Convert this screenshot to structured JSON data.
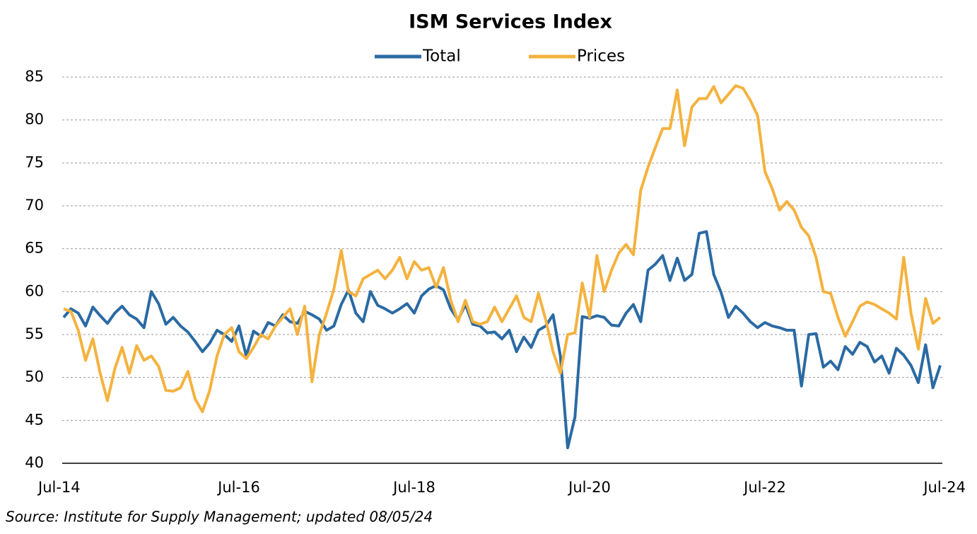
{
  "chart_data": {
    "type": "line",
    "title": "ISM Services Index",
    "source": "Source: Institute for Supply Management; updated 08/05/24",
    "categories": [
      "Jul-14",
      null,
      null,
      null,
      null,
      null,
      null,
      null,
      null,
      null,
      null,
      null,
      null,
      null,
      null,
      null,
      null,
      null,
      null,
      null,
      null,
      null,
      null,
      null,
      "Jul-16",
      null,
      null,
      null,
      null,
      null,
      null,
      null,
      null,
      null,
      null,
      null,
      null,
      null,
      null,
      null,
      null,
      null,
      null,
      null,
      null,
      null,
      null,
      null,
      "Jul-18",
      null,
      null,
      null,
      null,
      null,
      null,
      null,
      null,
      null,
      null,
      null,
      null,
      null,
      null,
      null,
      null,
      null,
      null,
      null,
      null,
      null,
      null,
      null,
      "Jul-20",
      null,
      null,
      null,
      null,
      null,
      null,
      null,
      null,
      null,
      null,
      null,
      null,
      null,
      null,
      null,
      null,
      null,
      null,
      null,
      null,
      null,
      null,
      null,
      "Jul-22",
      null,
      null,
      null,
      null,
      null,
      null,
      null,
      null,
      null,
      null,
      null,
      null,
      null,
      null,
      null,
      null,
      null,
      null,
      null,
      null,
      null,
      null,
      null,
      "Jul-24"
    ],
    "series": [
      {
        "name": "Total",
        "color": "#2a6aa3",
        "values": [
          57,
          58,
          57.5,
          56,
          58.2,
          57.2,
          56.3,
          57.5,
          58.3,
          57.3,
          56.8,
          55.8,
          60,
          58.6,
          56.2,
          57,
          56,
          55.3,
          54.2,
          53,
          54,
          55.5,
          55,
          54.2,
          56,
          52.5,
          55.4,
          54.8,
          56.4,
          56,
          57.3,
          56.5,
          56.3,
          57.7,
          57.3,
          56.8,
          55.5,
          56,
          58.5,
          60.2,
          57.5,
          56.5,
          60,
          58.4,
          58,
          57.5,
          58,
          58.6,
          57.5,
          59.5,
          60.3,
          60.7,
          60.2,
          58,
          56.7,
          58.5,
          56.2,
          56,
          55.2,
          55.3,
          54.5,
          55.5,
          53,
          54.7,
          53.5,
          55.5,
          56,
          57.3,
          52.5,
          41.8,
          45.4,
          57.1,
          56.9,
          57.2,
          57,
          56.1,
          56,
          57.5,
          58.5,
          56.5,
          62.5,
          63.2,
          64.2,
          61.3,
          63.9,
          61.3,
          62,
          66.8,
          67,
          62,
          59.9,
          57,
          58.3,
          57.5,
          56.5,
          55.8,
          56.4,
          56,
          55.8,
          55.5,
          55.5,
          49,
          55,
          55.1,
          51.2,
          51.9,
          50.9,
          53.6,
          52.7,
          54.1,
          53.6,
          51.8,
          52.5,
          50.5,
          53.4,
          52.6,
          51.4,
          49.4,
          53.8,
          48.8,
          51.4
        ]
      },
      {
        "name": "Prices",
        "color": "#f4b23e",
        "values": [
          58,
          57.7,
          55.5,
          52,
          54.5,
          50.5,
          47.3,
          51,
          53.5,
          50.5,
          53.7,
          52,
          52.5,
          51.3,
          48.5,
          48.4,
          48.8,
          50.7,
          47.5,
          46,
          48.5,
          52.5,
          55,
          55.8,
          53,
          52.2,
          53.5,
          55,
          54.5,
          56,
          57,
          58,
          55,
          58.3,
          49.5,
          55,
          57.5,
          60.3,
          64.8,
          60,
          59.5,
          61.5,
          62,
          62.5,
          61.5,
          62.5,
          64,
          61.5,
          63.5,
          62.5,
          62.8,
          60.5,
          62.8,
          59,
          56.5,
          59,
          56.5,
          56.2,
          56.5,
          58.2,
          56.5,
          58,
          59.5,
          57,
          56.5,
          59.8,
          56.7,
          53,
          50.5,
          55,
          55.2,
          61,
          57,
          64.2,
          60,
          62.5,
          64.5,
          65.5,
          64.3,
          71.8,
          74.5,
          76.8,
          79,
          79,
          83.5,
          77,
          81.5,
          82.5,
          82.5,
          83.9,
          82,
          83,
          84,
          83.7,
          82.3,
          80.5,
          74,
          72,
          69.5,
          70.5,
          69.5,
          67.5,
          66.5,
          64,
          60,
          59.8,
          57,
          54.8,
          56.5,
          58.3,
          58.8,
          58.5,
          58,
          57.5,
          56.8,
          64,
          57.5,
          53.3,
          59.2,
          56.3,
          57
        ]
      }
    ],
    "ylim": [
      40,
      85
    ],
    "yticks": [
      40,
      45,
      50,
      55,
      60,
      65,
      70,
      75,
      80,
      85
    ],
    "grid": true,
    "legend": "top"
  }
}
